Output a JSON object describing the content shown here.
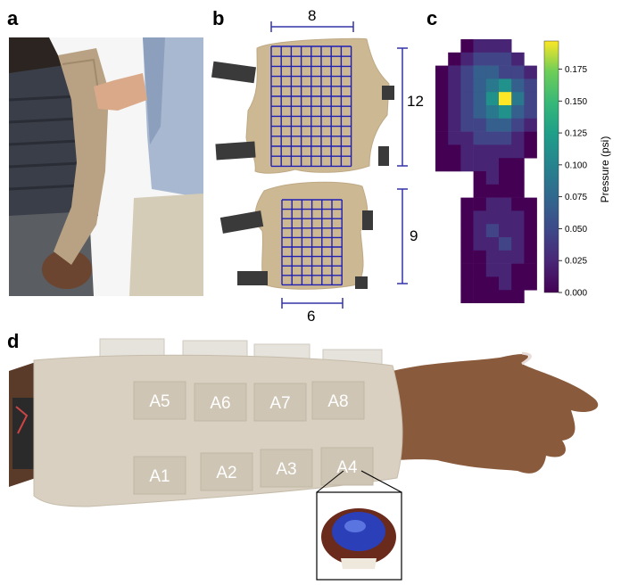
{
  "panels": {
    "a": "a",
    "b": "b",
    "c": "c",
    "d": "d"
  },
  "dimensions": {
    "top_width": "8",
    "top_height": "12",
    "bottom_height": "9",
    "bottom_width": "6"
  },
  "colorbar": {
    "title": "Pressure (psi)",
    "ticks": [
      "0.175",
      "0.150",
      "0.125",
      "0.100",
      "0.075",
      "0.050",
      "0.025",
      "0.000"
    ]
  },
  "sensors": [
    "A5",
    "A6",
    "A7",
    "A8",
    "A1",
    "A2",
    "A3",
    "A4"
  ],
  "colors": {
    "grid_line": "#1f1fb4",
    "sleeve": "#d9d0c1",
    "skin": "#8a5a3c",
    "colormap": "viridis"
  }
}
